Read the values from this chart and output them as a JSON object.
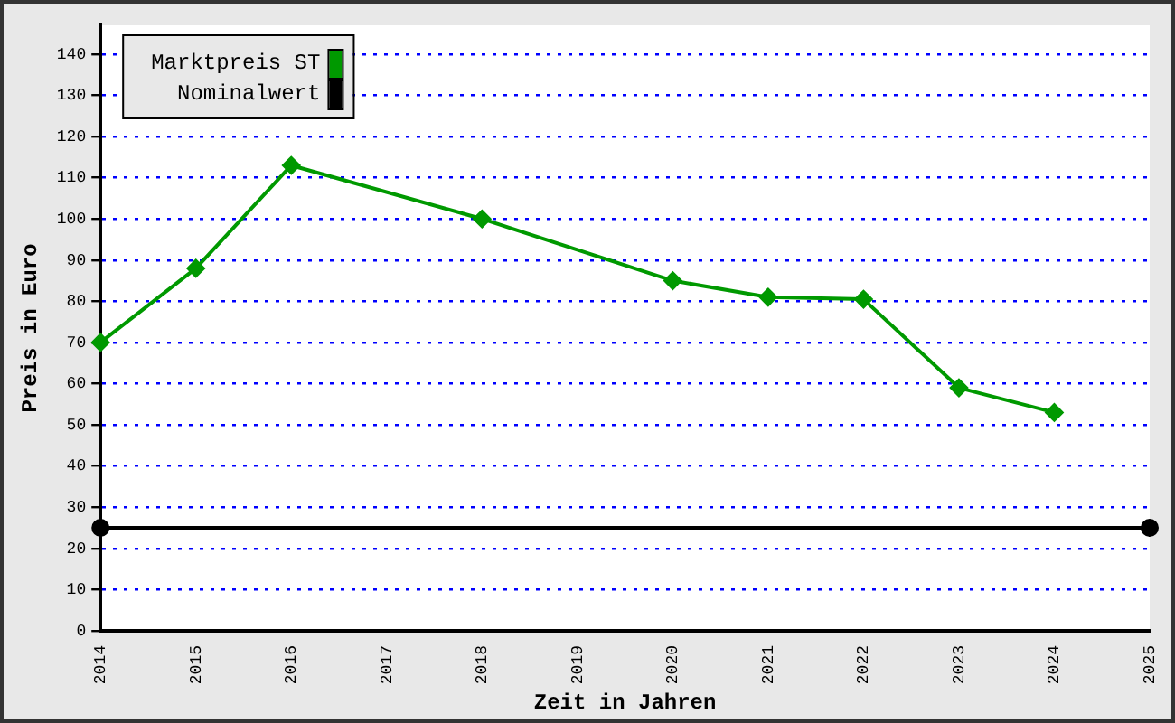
{
  "chart_data": {
    "type": "line",
    "xlabel": "Zeit in Jahren",
    "ylabel": "Preis in Euro",
    "categories": [
      "2014",
      "2015",
      "2016",
      "2017",
      "2018",
      "2019",
      "2020",
      "2021",
      "2022",
      "2023",
      "2024",
      "2025"
    ],
    "series": [
      {
        "name": "Marktpreis ST",
        "color": "#009900",
        "marker": "diamond",
        "values": [
          70,
          88,
          113,
          null,
          100,
          null,
          85,
          81,
          80.5,
          59,
          53,
          null
        ]
      },
      {
        "name": "Nominalwert",
        "color": "#000000",
        "marker": "circle",
        "values": [
          25,
          null,
          null,
          null,
          null,
          null,
          null,
          null,
          null,
          null,
          null,
          25
        ]
      }
    ],
    "ylim": [
      0,
      147
    ],
    "yticks": [
      0,
      10,
      20,
      30,
      40,
      50,
      60,
      70,
      80,
      90,
      100,
      110,
      120,
      130,
      140
    ],
    "grid": "y",
    "legend": "top left",
    "line_style": "solid"
  }
}
